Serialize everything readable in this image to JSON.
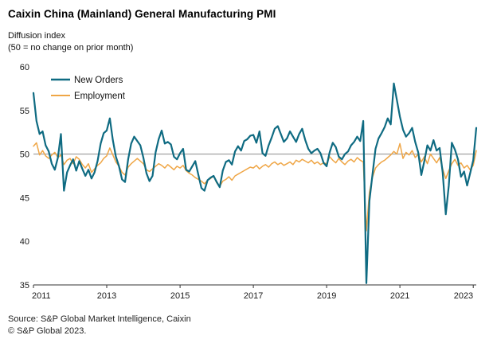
{
  "header": {
    "title": "Caixin China (Mainland) General Manufacturing PMI",
    "subtitle_line1": "Diffusion index",
    "subtitle_line2": "(50 = no change on prior month)"
  },
  "footer": {
    "source": "Source: S&P Global Market Intelligence, Caixin",
    "copyright": "© S&P Global 2023."
  },
  "colors": {
    "new_orders": "#0f6b82",
    "employment": "#efa646",
    "reference_line": "#8c8c8c",
    "axis": "#333333"
  },
  "chart_data": {
    "type": "line",
    "title": "Caixin China (Mainland) General Manufacturing PMI",
    "ylabel": "Diffusion index (50 = no change on prior month)",
    "frequency": "monthly",
    "x_start": {
      "year": 2011,
      "month": 1
    },
    "x_end": {
      "year": 2023,
      "month": 2
    },
    "ylim": [
      35,
      60
    ],
    "yticks": [
      35,
      40,
      45,
      50,
      55,
      60
    ],
    "xticks_years": [
      2011,
      2013,
      2015,
      2017,
      2019,
      2021,
      2023
    ],
    "reference_value": 50,
    "grid": "reference line at 50 only",
    "legend_position": "top-left",
    "series": [
      {
        "name": "New Orders",
        "color": "#0f6b82",
        "values": [
          57.0,
          53.8,
          52.3,
          52.6,
          51.0,
          50.3,
          48.9,
          48.2,
          49.6,
          52.3,
          45.8,
          47.9,
          48.7,
          49.4,
          48.1,
          49.2,
          48.3,
          47.5,
          48.2,
          47.2,
          47.9,
          49.2,
          51.2,
          52.4,
          52.7,
          54.1,
          51.6,
          49.7,
          48.6,
          47.1,
          46.8,
          49.4,
          51.2,
          52.0,
          51.5,
          51.0,
          49.6,
          47.8,
          46.9,
          47.5,
          50.2,
          51.7,
          52.7,
          51.2,
          51.4,
          51.1,
          49.7,
          49.4,
          50.1,
          50.6,
          48.2,
          48.0,
          48.6,
          49.2,
          47.6,
          46.1,
          45.8,
          47.0,
          47.3,
          47.5,
          46.8,
          46.2,
          48.1,
          49.1,
          49.3,
          48.8,
          50.3,
          50.9,
          50.4,
          51.5,
          51.7,
          52.1,
          52.2,
          51.3,
          52.6,
          50.1,
          49.8,
          51.0,
          51.9,
          52.9,
          53.2,
          52.3,
          51.4,
          51.8,
          52.6,
          52.0,
          51.4,
          52.3,
          52.9,
          51.6,
          50.6,
          50.1,
          50.4,
          50.6,
          50.1,
          49.0,
          48.6,
          50.2,
          51.3,
          50.8,
          49.7,
          49.4,
          50.0,
          50.3,
          51.0,
          51.4,
          52.0,
          51.5,
          53.8,
          35.2,
          44.6,
          47.6,
          50.6,
          51.8,
          52.4,
          53.1,
          54.1,
          53.4,
          58.1,
          56.2,
          54.3,
          52.8,
          52.0,
          52.4,
          53.0,
          51.4,
          50.2,
          47.6,
          49.2,
          51.0,
          50.4,
          51.6,
          50.4,
          50.7,
          47.9,
          43.1,
          46.4,
          51.3,
          50.5,
          49.4,
          47.4,
          48.0,
          46.4,
          47.8,
          49.3,
          53.0
        ]
      },
      {
        "name": "Employment",
        "color": "#efa646",
        "values": [
          50.9,
          51.3,
          49.9,
          50.4,
          49.8,
          49.5,
          49.9,
          50.2,
          49.6,
          49.9,
          48.8,
          49.3,
          49.5,
          48.9,
          49.7,
          49.4,
          48.8,
          48.4,
          48.9,
          47.9,
          48.3,
          48.7,
          49.0,
          49.5,
          49.8,
          50.7,
          49.9,
          49.1,
          48.6,
          47.9,
          47.6,
          48.5,
          48.9,
          49.2,
          49.5,
          49.2,
          48.9,
          48.2,
          48.0,
          48.3,
          48.6,
          48.9,
          48.7,
          48.4,
          48.8,
          48.5,
          48.2,
          48.6,
          48.4,
          48.7,
          48.1,
          47.8,
          47.6,
          47.3,
          47.1,
          46.9,
          46.6,
          47.0,
          47.2,
          47.5,
          46.7,
          46.3,
          46.9,
          47.1,
          47.4,
          47.0,
          47.5,
          47.7,
          47.9,
          48.1,
          48.3,
          48.5,
          48.4,
          48.7,
          48.3,
          48.6,
          48.8,
          48.5,
          48.9,
          49.1,
          48.8,
          49.0,
          48.7,
          48.9,
          49.1,
          48.8,
          49.3,
          49.1,
          49.4,
          49.2,
          49.0,
          49.3,
          48.9,
          49.1,
          48.8,
          49.0,
          48.9,
          49.7,
          49.3,
          49.0,
          49.5,
          49.1,
          48.8,
          49.2,
          49.4,
          49.1,
          49.6,
          49.3,
          49.1,
          41.2,
          45.6,
          47.3,
          48.4,
          48.8,
          49.1,
          49.3,
          49.6,
          49.9,
          50.3,
          50.0,
          51.2,
          49.5,
          50.2,
          49.9,
          50.4,
          49.6,
          50.0,
          49.1,
          49.7,
          48.9,
          50.0,
          49.5,
          49.0,
          49.6,
          48.3,
          47.2,
          48.1,
          48.9,
          49.4,
          48.7,
          49.0,
          48.4,
          48.7,
          48.2,
          48.7,
          50.4
        ]
      }
    ]
  }
}
